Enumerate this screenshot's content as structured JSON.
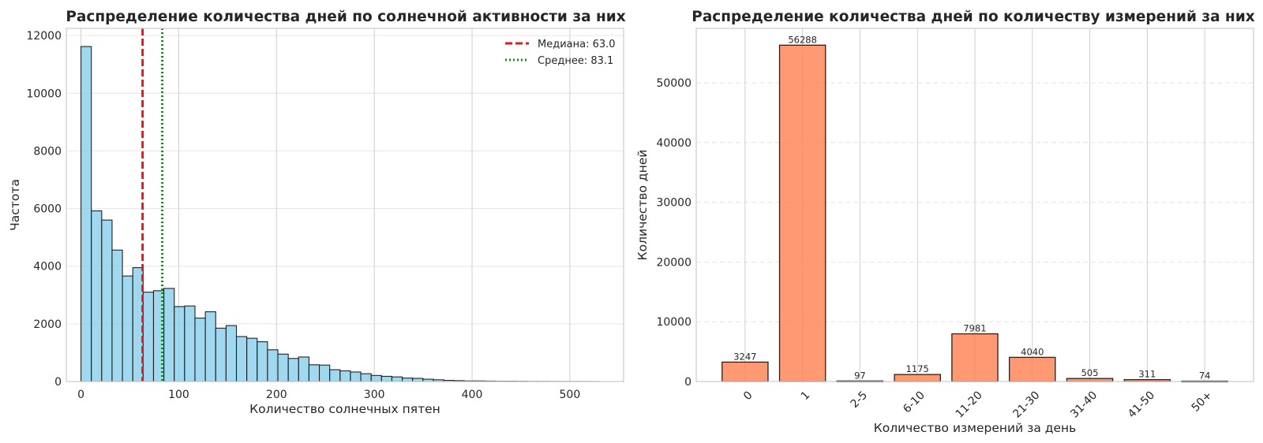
{
  "chart_data": [
    {
      "type": "bar",
      "title": "Распределение количества дней по солнечной активности за них",
      "xlabel": "Количество солнечных пятен",
      "ylabel": "Частота",
      "xlim": [
        -15,
        555
      ],
      "ylim": [
        0,
        12250
      ],
      "xticks": [
        0,
        100,
        200,
        300,
        400,
        500
      ],
      "yticks": [
        0,
        2000,
        4000,
        6000,
        8000,
        10000,
        12000
      ],
      "bin_edges_start": 0,
      "bin_width": 10.6,
      "values": [
        11620,
        5920,
        5600,
        4560,
        3660,
        3950,
        3100,
        3150,
        3230,
        2600,
        2620,
        2200,
        2420,
        1850,
        1940,
        1560,
        1500,
        1380,
        1100,
        950,
        800,
        850,
        580,
        570,
        410,
        370,
        330,
        270,
        210,
        180,
        160,
        120,
        110,
        80,
        60,
        40,
        30,
        20,
        20,
        15,
        10,
        10,
        8,
        5,
        5,
        4,
        3,
        3,
        2,
        2
      ],
      "lines": [
        {
          "name": "Медиана: 63.0",
          "x": 63.0,
          "color": "#e31a1c",
          "style": "dashed"
        },
        {
          "name": "Среднее: 83.1",
          "x": 83.1,
          "color": "#1a8a1a",
          "style": "dotted"
        }
      ],
      "bar_color": "#87ceeb",
      "grid": true,
      "legend_position": "top-right"
    },
    {
      "type": "bar",
      "title": "Распределение количества дней по количеству измерений за них",
      "xlabel": "Количество измерений за день",
      "ylabel": "Количество дней",
      "categories": [
        "0",
        "1",
        "2-5",
        "6-10",
        "11-20",
        "21-30",
        "31-40",
        "41-50",
        "50+"
      ],
      "values": [
        3247,
        56288,
        97,
        1175,
        7981,
        4040,
        505,
        311,
        74
      ],
      "ylim": [
        0,
        59100
      ],
      "yticks": [
        0,
        10000,
        20000,
        30000,
        40000,
        50000
      ],
      "bar_color": "#ff7f50",
      "grid": true
    }
  ]
}
